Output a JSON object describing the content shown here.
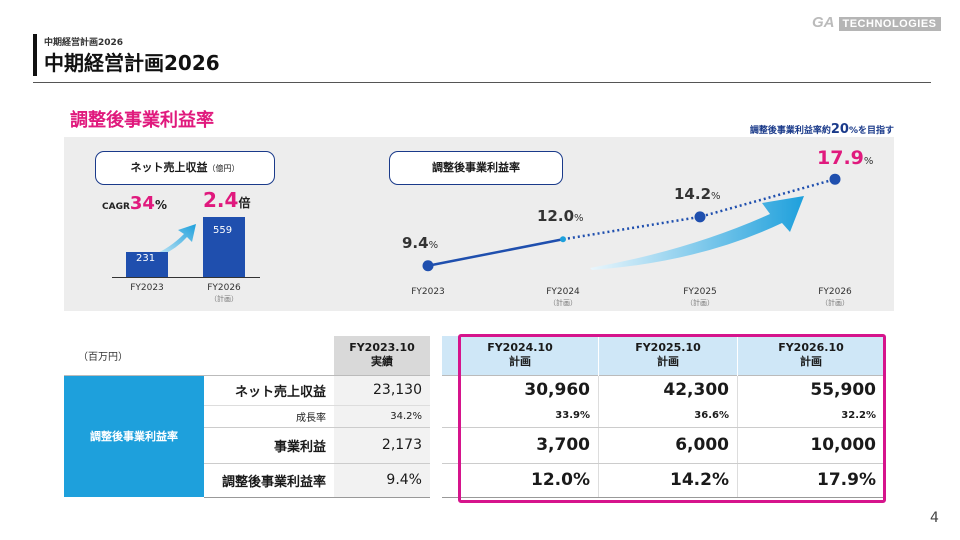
{
  "header": {
    "breadcrumb": "中期経営計画2026",
    "title": "中期経営計画2026",
    "logo_mark": "GA",
    "logo_word": "TECHNOLOGIES"
  },
  "section_title": "調整後事業利益率",
  "left_chart": {
    "pill_label": "ネット売上収益",
    "pill_unit": "（億円）",
    "cagr_prefix": "CAGR",
    "cagr_value": "34",
    "cagr_unit": "%",
    "multiple_value": "2.4",
    "multiple_unit": "倍",
    "chart_data": {
      "type": "bar",
      "categories": [
        "FY2023",
        "FY2026"
      ],
      "category_subs": [
        "",
        "（計画）"
      ],
      "values": [
        231,
        559
      ],
      "value_labels": [
        "231",
        "559"
      ]
    }
  },
  "right_chart": {
    "pill_label": "調整後事業利益率",
    "target_note_prefix": "調整後事業利益率約",
    "target_note_value": "20",
    "target_note_suffix": "%を目指す",
    "chart_data": {
      "type": "line",
      "x": [
        "FY2023",
        "FY2024",
        "FY2025",
        "FY2026"
      ],
      "x_subs": [
        "",
        "（計画）",
        "（計画）",
        "（計画）"
      ],
      "values": [
        9.4,
        12.0,
        14.2,
        17.9
      ],
      "value_labels": [
        "9.4",
        "12.0",
        "14.2",
        "17.9"
      ],
      "unit": "%",
      "ylim": [
        8,
        19
      ]
    }
  },
  "table": {
    "unit_label": "（百万円）",
    "columns": [
      {
        "line1": "FY2023.10",
        "line2": "実績"
      },
      {
        "line1": "FY2024.10",
        "line2": "計画"
      },
      {
        "line1": "FY2025.10",
        "line2": "計画"
      },
      {
        "line1": "FY2026.10",
        "line2": "計画"
      }
    ],
    "group_label": "調整後事業利益率",
    "rows": [
      {
        "label": "ネット売上収益",
        "values": [
          "23,130",
          "30,960",
          "42,300",
          "55,900"
        ]
      },
      {
        "label": "成長率",
        "values": [
          "34.2%",
          "33.9%",
          "36.6%",
          "32.2%"
        ]
      },
      {
        "label": "事業利益",
        "values": [
          "2,173",
          "3,700",
          "6,000",
          "10,000"
        ]
      },
      {
        "label": "調整後事業利益率",
        "values": [
          "9.4%",
          "12.0%",
          "14.2%",
          "17.9%"
        ]
      }
    ]
  },
  "colors": {
    "accent_pink": "#e0197d",
    "navy": "#1a3a8a",
    "blue": "#1f4fae",
    "table_header_blue": "#cfe7f7",
    "group_cell_blue": "#1ea0dc"
  },
  "page_number": "4"
}
